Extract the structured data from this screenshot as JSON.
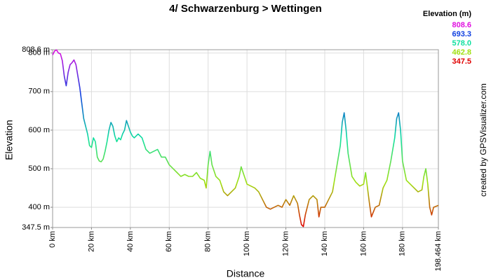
{
  "chart_data": {
    "type": "line",
    "title": "4/ Schwarzenburg > Wettingen",
    "x_label": "Distance",
    "y_label": "Elevation",
    "credit": "created by GPSVisualizer.com",
    "legend_title": "Elevation (m)",
    "legend": [
      {
        "value": 808.6,
        "label": "808.6",
        "color": "#e010e0"
      },
      {
        "value": 693.3,
        "label": "693.3",
        "color": "#1040e0"
      },
      {
        "value": 578.0,
        "label": "578.0",
        "color": "#10e0a0"
      },
      {
        "value": 462.8,
        "label": "462.8",
        "color": "#a0e010"
      },
      {
        "value": 347.5,
        "label": "347.5",
        "color": "#e00000"
      }
    ],
    "x": [
      0,
      1,
      2,
      3,
      4,
      5,
      6,
      7,
      8,
      9,
      10,
      11,
      12,
      13,
      14,
      15,
      16,
      17,
      18,
      19,
      20,
      21,
      22,
      23,
      24,
      25,
      26,
      27,
      28,
      29,
      30,
      31,
      32,
      33,
      34,
      35,
      36,
      37,
      38,
      39,
      40,
      41,
      42,
      44,
      46,
      48,
      50,
      52,
      54,
      56,
      58,
      60,
      62,
      64,
      66,
      68,
      70,
      72,
      74,
      76,
      78,
      79,
      80,
      81,
      82,
      84,
      86,
      88,
      90,
      92,
      94,
      96,
      97,
      98,
      100,
      102,
      104,
      106,
      108,
      110,
      112,
      114,
      116,
      118,
      120,
      122,
      124,
      126,
      127,
      128,
      129,
      130,
      132,
      134,
      136,
      137,
      138,
      140,
      142,
      144,
      146,
      148,
      149,
      150,
      151,
      152,
      154,
      156,
      158,
      160,
      161,
      162,
      163,
      164,
      166,
      168,
      170,
      172,
      174,
      176,
      177,
      178,
      179,
      180,
      182,
      184,
      186,
      188,
      190,
      191,
      192,
      193,
      194,
      195,
      196,
      198.464
    ],
    "values": [
      795,
      805,
      808,
      800,
      798,
      780,
      740,
      715,
      750,
      770,
      775,
      782,
      770,
      740,
      710,
      670,
      630,
      610,
      590,
      560,
      555,
      580,
      570,
      530,
      520,
      518,
      525,
      545,
      570,
      600,
      620,
      610,
      585,
      570,
      580,
      575,
      590,
      600,
      625,
      610,
      595,
      585,
      580,
      590,
      580,
      550,
      540,
      545,
      550,
      530,
      530,
      510,
      500,
      490,
      480,
      485,
      480,
      480,
      490,
      475,
      470,
      450,
      510,
      545,
      510,
      480,
      470,
      440,
      430,
      440,
      450,
      480,
      505,
      490,
      460,
      455,
      450,
      440,
      420,
      400,
      395,
      400,
      405,
      400,
      420,
      405,
      430,
      410,
      380,
      355,
      350,
      380,
      420,
      430,
      420,
      375,
      400,
      400,
      420,
      440,
      500,
      560,
      620,
      645,
      600,
      540,
      480,
      465,
      455,
      460,
      490,
      450,
      410,
      375,
      400,
      405,
      450,
      470,
      520,
      580,
      630,
      645,
      600,
      520,
      470,
      460,
      450,
      440,
      445,
      480,
      500,
      460,
      400,
      380,
      400,
      405
    ],
    "xlim": [
      0,
      198.464
    ],
    "ylim": [
      347.5,
      808.6
    ],
    "xticks": [
      {
        "value": 0,
        "label": "0 km"
      },
      {
        "value": 20,
        "label": "20 km"
      },
      {
        "value": 40,
        "label": "40 km"
      },
      {
        "value": 60,
        "label": "60 km"
      },
      {
        "value": 80,
        "label": "80 km"
      },
      {
        "value": 100,
        "label": "100 km"
      },
      {
        "value": 120,
        "label": "120 km"
      },
      {
        "value": 140,
        "label": "140 km"
      },
      {
        "value": 160,
        "label": "160 km"
      },
      {
        "value": 180,
        "label": "180 km"
      },
      {
        "value": 198.464,
        "label": "198.464 km"
      }
    ],
    "yticks": [
      {
        "value": 347.5,
        "label": "347.5 m"
      },
      {
        "value": 400,
        "label": "400 m"
      },
      {
        "value": 500,
        "label": "500 m"
      },
      {
        "value": 600,
        "label": "600 m"
      },
      {
        "value": 700,
        "label": "700 m"
      },
      {
        "value": 800,
        "label": "800 m"
      },
      {
        "value": 808.6,
        "label": "808.6 m"
      }
    ],
    "grid": true
  }
}
